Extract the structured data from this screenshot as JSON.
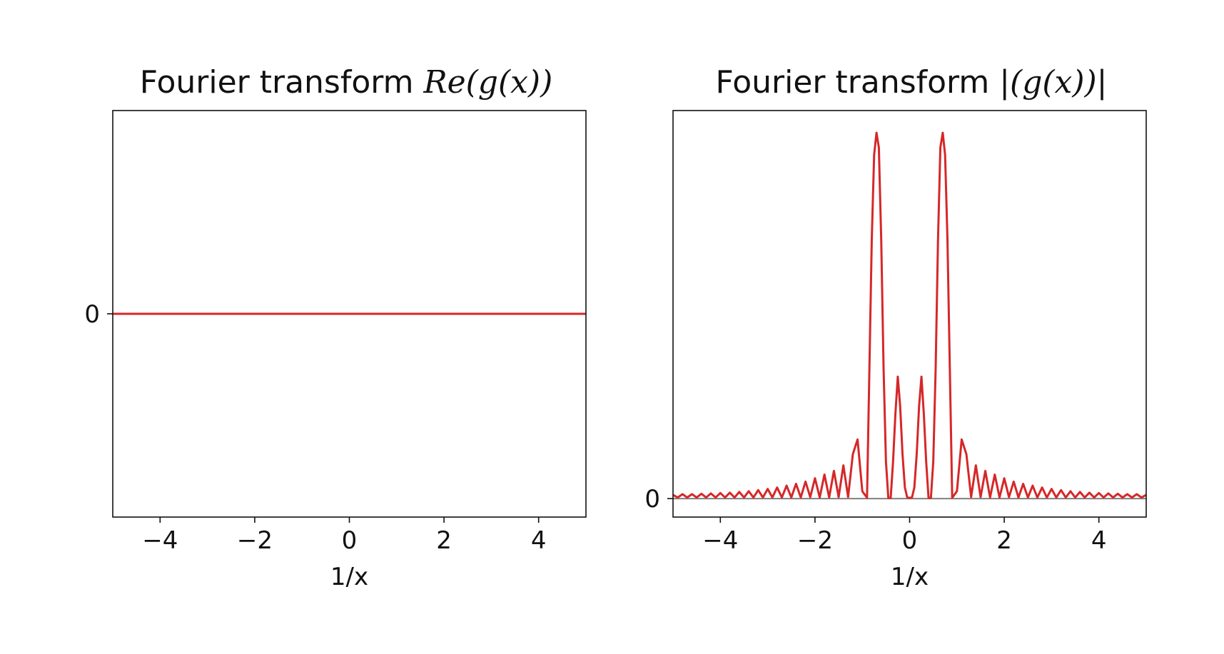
{
  "chart_data": [
    {
      "type": "line",
      "title_prefix": "Fourier transform ",
      "title_math": "Re(g(x))",
      "xlabel": "1/x",
      "ylabel": "",
      "xlim": [
        -5,
        5
      ],
      "ylim": [
        -1,
        1
      ],
      "xticks": [
        -4,
        -2,
        0,
        2,
        4
      ],
      "xtick_labels": [
        "−4",
        "−2",
        "0",
        "2",
        "4"
      ],
      "yticks": [
        0
      ],
      "ytick_labels": [
        "0"
      ],
      "series": [
        {
          "name": "Re(g(x))",
          "color": "#d62728",
          "x": [
            -5,
            5
          ],
          "y": [
            0,
            0
          ]
        }
      ]
    },
    {
      "type": "line",
      "title_prefix": "Fourier transform ",
      "title_math": "|(g(x))|",
      "xlabel": "1/x",
      "ylabel": "",
      "xlim": [
        -5,
        5
      ],
      "ylim": [
        -0.05,
        1.05
      ],
      "xticks": [
        -4,
        -2,
        0,
        2,
        4
      ],
      "xtick_labels": [
        "−4",
        "−2",
        "0",
        "2",
        "4"
      ],
      "yticks": [
        0
      ],
      "ytick_labels": [
        "0"
      ],
      "baseline": {
        "y": 0,
        "color": "#808080"
      },
      "series": [
        {
          "name": "|g(x)|",
          "color": "#d62728",
          "x": [
            -5,
            -4.9,
            -4.8,
            -4.7,
            -4.6,
            -4.5,
            -4.4,
            -4.3,
            -4.2,
            -4.1,
            -4,
            -3.9,
            -3.8,
            -3.7,
            -3.6,
            -3.5,
            -3.4,
            -3.3,
            -3.2,
            -3.1,
            -3,
            -2.9,
            -2.8,
            -2.7,
            -2.6,
            -2.5,
            -2.4,
            -2.3,
            -2.2,
            -2.1,
            -2,
            -1.9,
            -1.8,
            -1.7,
            -1.6,
            -1.5,
            -1.4,
            -1.3,
            -1.2,
            -1.1,
            -1,
            -0.9,
            -0.85,
            -0.8,
            -0.75,
            -0.7,
            -0.65,
            -0.6,
            -0.55,
            -0.5,
            -0.45,
            -0.4,
            -0.35,
            -0.3,
            -0.25,
            -0.2,
            -0.15,
            -0.1,
            -0.05,
            0,
            0.05,
            0.1,
            0.15,
            0.2,
            0.25,
            0.3,
            0.35,
            0.4,
            0.45,
            0.5,
            0.55,
            0.6,
            0.65,
            0.7,
            0.75,
            0.8,
            0.85,
            0.9,
            1,
            1.1,
            1.2,
            1.3,
            1.4,
            1.5,
            1.6,
            1.7,
            1.8,
            1.9,
            2,
            2.1,
            2.2,
            2.3,
            2.4,
            2.5,
            2.6,
            2.7,
            2.8,
            2.9,
            3,
            3.1,
            3.2,
            3.3,
            3.4,
            3.5,
            3.6,
            3.7,
            3.8,
            3.9,
            4,
            4.1,
            4.2,
            4.3,
            4.4,
            4.5,
            4.6,
            4.7,
            4.8,
            4.9,
            5
          ],
          "y": [
            0.01,
            0.003,
            0.012,
            0.003,
            0.012,
            0.003,
            0.013,
            0.003,
            0.014,
            0.003,
            0.015,
            0.003,
            0.016,
            0.003,
            0.018,
            0.003,
            0.02,
            0.003,
            0.023,
            0.003,
            0.026,
            0.003,
            0.03,
            0.003,
            0.035,
            0.003,
            0.04,
            0.003,
            0.046,
            0.004,
            0.055,
            0.003,
            0.065,
            0.003,
            0.075,
            0.004,
            0.09,
            0.004,
            0.12,
            0.16,
            0.02,
            0.002,
            0.35,
            0.7,
            0.93,
            0.99,
            0.95,
            0.7,
            0.35,
            0.1,
            0.002,
            0.002,
            0.1,
            0.23,
            0.33,
            0.25,
            0.12,
            0.03,
            0.003,
            0.002,
            0.003,
            0.03,
            0.12,
            0.25,
            0.33,
            0.23,
            0.1,
            0.002,
            0.002,
            0.1,
            0.35,
            0.7,
            0.95,
            0.99,
            0.93,
            0.7,
            0.35,
            0.002,
            0.02,
            0.16,
            0.12,
            0.004,
            0.09,
            0.004,
            0.075,
            0.003,
            0.065,
            0.003,
            0.055,
            0.004,
            0.046,
            0.003,
            0.04,
            0.003,
            0.035,
            0.003,
            0.03,
            0.003,
            0.026,
            0.003,
            0.023,
            0.003,
            0.02,
            0.003,
            0.018,
            0.003,
            0.016,
            0.003,
            0.015,
            0.003,
            0.014,
            0.003,
            0.013,
            0.003,
            0.012,
            0.003,
            0.012,
            0.003,
            0.01
          ]
        }
      ]
    }
  ]
}
